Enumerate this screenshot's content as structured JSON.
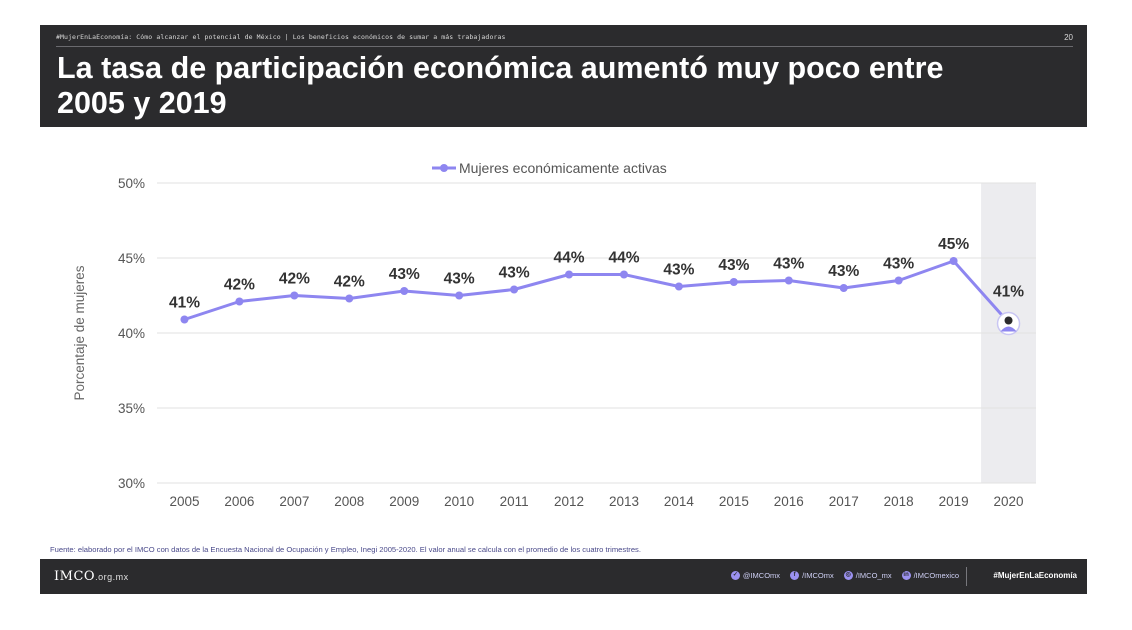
{
  "header": {
    "topline": "#MujerEnLaEconomía: Cómo alcanzar el potencial de México  |  Los beneficios económicos de sumar a más trabajadoras",
    "page_number": "20",
    "title": "La tasa de participación económica aumentó muy poco entre 2005 y 2019"
  },
  "chart_data": {
    "type": "line",
    "title": "",
    "xlabel": "",
    "ylabel": "Porcentaje de mujeres",
    "categories": [
      "2005",
      "2006",
      "2007",
      "2008",
      "2009",
      "2010",
      "2011",
      "2012",
      "2013",
      "2014",
      "2015",
      "2016",
      "2017",
      "2018",
      "2019",
      "2020"
    ],
    "series": [
      {
        "name": "Mujeres económicamente activas",
        "values": [
          40.9,
          42.1,
          42.5,
          42.3,
          42.8,
          42.5,
          42.9,
          43.9,
          43.9,
          43.1,
          43.4,
          43.5,
          43.0,
          43.5,
          44.8,
          40.7
        ],
        "labels": [
          "41%",
          "42%",
          "42%",
          "42%",
          "43%",
          "43%",
          "43%",
          "44%",
          "44%",
          "43%",
          "43%",
          "43%",
          "43%",
          "43%",
          "45%",
          "41%"
        ]
      }
    ],
    "ylim": [
      30,
      50
    ],
    "yticks": [
      "30%",
      "35%",
      "40%",
      "45%",
      "50%"
    ],
    "ytick_values": [
      30,
      35,
      40,
      45,
      50
    ],
    "grid": true,
    "legend": "top",
    "highlight_category": "2020",
    "colors": {
      "line": "#8e86f0",
      "highlight": "#ececef",
      "grid": "#e2e2e2",
      "label": "#333333"
    }
  },
  "source": "Fuente: elaborado por el IMCO con datos de la Encuesta Nacional de Ocupación y Empleo, Inegi 2005-2020. El valor anual se calcula con el promedio de los cuatro trimestres.",
  "footer": {
    "logo": "IMCO",
    "domain": ".org.mx",
    "socials": [
      {
        "icon": "twitter-icon",
        "glyph": "✓",
        "label": "@IMCOmx"
      },
      {
        "icon": "facebook-icon",
        "glyph": "f",
        "label": "/IMCOmx"
      },
      {
        "icon": "instagram-icon",
        "glyph": "◎",
        "label": "/IMCO_mx"
      },
      {
        "icon": "linkedin-icon",
        "glyph": "in",
        "label": "/IMCOmexico"
      }
    ],
    "hashtag": "#MujerEnLaEconomía"
  }
}
